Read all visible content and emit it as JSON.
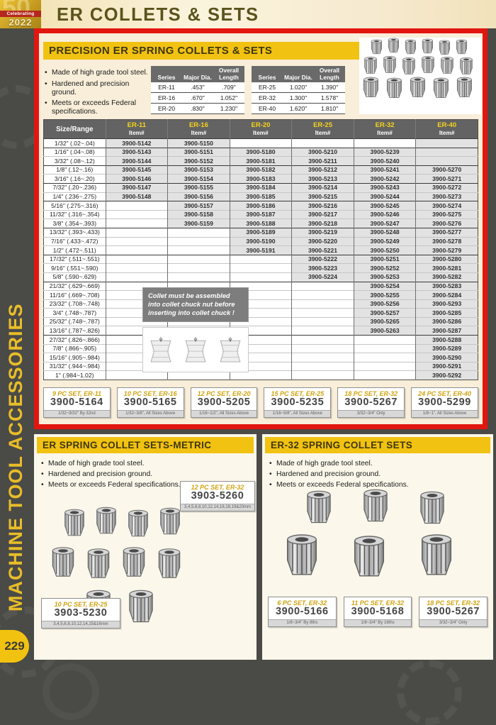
{
  "page": {
    "header_title": "ER COLLETS & SETS",
    "badge": {
      "line1": "Celebrating",
      "year": "2022",
      "anniversary": "50"
    },
    "sidebar_text": "MACHINE TOOL ACCESSORIES",
    "page_number": "229"
  },
  "main_section": {
    "title": "PRECISION ER SPRING COLLETS & SETS",
    "bullets": [
      "Made of high grade tool steel.",
      "Hardened and precision ground.",
      "Meets or exceeds Federal specifications."
    ],
    "spec_tables": [
      {
        "headers": [
          "Series",
          "Major Dia.",
          "Overall Length"
        ],
        "rows": [
          [
            "ER-11",
            ".453\"",
            ".709\""
          ],
          [
            "ER-16",
            ".670\"",
            "1.052\""
          ],
          [
            "ER-20",
            ".830\"",
            "1.230\""
          ]
        ]
      },
      {
        "headers": [
          "Series",
          "Major Dia.",
          "Overall Length"
        ],
        "rows": [
          [
            "ER-25",
            "1.020\"",
            "1.390\""
          ],
          [
            "ER-32",
            "1.300\"",
            "1.578\""
          ],
          [
            "ER-40",
            "1.620\"",
            "1.810\""
          ]
        ]
      }
    ],
    "table": {
      "size_header": "Size/Range",
      "col_headers": [
        {
          "series": "ER-11",
          "sub": "Item#"
        },
        {
          "series": "ER-16",
          "sub": "Item#"
        },
        {
          "series": "ER-20",
          "sub": "Item#"
        },
        {
          "series": "ER-25",
          "sub": "Item#"
        },
        {
          "series": "ER-32",
          "sub": "Item#"
        },
        {
          "series": "ER-40",
          "sub": "Item#"
        }
      ],
      "group_starts": [
        0,
        1,
        3,
        5,
        7,
        10,
        13,
        16,
        22
      ],
      "shaded_empty": [
        [
          0,
          5
        ],
        [
          1,
          5
        ],
        [
          2,
          5
        ]
      ],
      "rows": [
        [
          "1/32\" (.02~.04)",
          "3900-5142",
          "3900-5150",
          "",
          "",
          "",
          ""
        ],
        [
          "1/16\" (.04~.08)",
          "3900-5143",
          "3900-5151",
          "3900-5180",
          "3900-5210",
          "3900-5239",
          ""
        ],
        [
          "3/32\" (.08~.12)",
          "3900-5144",
          "3900-5152",
          "3900-5181",
          "3900-5211",
          "3900-5240",
          ""
        ],
        [
          "1/8\" (.12~.16)",
          "3900-5145",
          "3900-5153",
          "3900-5182",
          "3900-5212",
          "3900-5241",
          "3900-5270"
        ],
        [
          "3/16\" (.16~.20)",
          "3900-5146",
          "3900-5154",
          "3900-5183",
          "3900-5213",
          "3900-5242",
          "3900-5271"
        ],
        [
          "7/32\" (.20~.236)",
          "3900-5147",
          "3900-5155",
          "3900-5184",
          "3900-5214",
          "3900-5243",
          "3900-5272"
        ],
        [
          "1/4\" (.236~.275)",
          "3900-5148",
          "3900-5156",
          "3900-5185",
          "3900-5215",
          "3900-5244",
          "3900-5273"
        ],
        [
          "5/16\" (.275~.316)",
          "",
          "3900-5157",
          "3900-5186",
          "3900-5216",
          "3900-5245",
          "3900-5274"
        ],
        [
          "11/32\" (.316~.354)",
          "",
          "3900-5158",
          "3900-5187",
          "3900-5217",
          "3900-5246",
          "3900-5275"
        ],
        [
          "3/8\" (.354~.393)",
          "",
          "3900-5159",
          "3900-5188",
          "3900-5218",
          "3900-5247",
          "3900-5276"
        ],
        [
          "13/32\" (.393~.433)",
          "",
          "",
          "3900-5189",
          "3900-5219",
          "3900-5248",
          "3900-5277"
        ],
        [
          "7/16\" (.433~.472)",
          "",
          "",
          "3900-5190",
          "3900-5220",
          "3900-5249",
          "3900-5278"
        ],
        [
          "1/2\" (.472~.511)",
          "",
          "",
          "3900-5191",
          "3900-5221",
          "3900-5250",
          "3900-5279"
        ],
        [
          "17/32\" (.511~.551)",
          "",
          "",
          "",
          "3900-5222",
          "3900-5251",
          "3900-5280"
        ],
        [
          "9/16\" (.551~.590)",
          "",
          "",
          "",
          "3900-5223",
          "3900-5252",
          "3900-5281"
        ],
        [
          "5/8\" (.590~.629)",
          "",
          "",
          "",
          "3900-5224",
          "3900-5253",
          "3900-5282"
        ],
        [
          "21/32\" (.629~.669)",
          "",
          "",
          "",
          "",
          "3900-5254",
          "3900-5283"
        ],
        [
          "11/16\" (.669~.708)",
          "",
          "",
          "",
          "",
          "3900-5255",
          "3900-5284"
        ],
        [
          "23/32\" (.708~.748)",
          "",
          "",
          "",
          "",
          "3900-5256",
          "3900-5293"
        ],
        [
          "3/4\" (.748~.787)",
          "",
          "",
          "",
          "",
          "3900-5257",
          "3900-5285"
        ],
        [
          "25/32\" (.748~.787)",
          "",
          "",
          "",
          "",
          "3900-5265",
          "3900-5286"
        ],
        [
          "13/16\" (.787~.826)",
          "",
          "",
          "",
          "",
          "3900-5263",
          "3900-5287"
        ],
        [
          "27/32\" (.826~.866)",
          "",
          "",
          "",
          "",
          "",
          "3900-5288"
        ],
        [
          "7/8\" (.866~.905)",
          "",
          "",
          "",
          "",
          "",
          "3900-5289"
        ],
        [
          "15/16\" (.905~.984)",
          "",
          "",
          "",
          "",
          "",
          "3900-5290"
        ],
        [
          "31/32\" (.944~.984)",
          "",
          "",
          "",
          "",
          "",
          "3900-5291"
        ],
        [
          "1\" (.984~1.02)",
          "",
          "",
          "",
          "",
          "",
          "3900-5292"
        ]
      ]
    },
    "note": "Collet must be assembled into collet chuck nut before inserting into collet chuck !",
    "sets": [
      {
        "title": "9 PC SET, ER-11",
        "item": "3900-5164",
        "sub": "1/32~9/32\" By 32nd"
      },
      {
        "title": "10 PC SET, ER-16",
        "item": "3900-5165",
        "sub": "1/32~3/8\", All Sizes Above"
      },
      {
        "title": "12 PC SET, ER-20",
        "item": "3900-5205",
        "sub": "1/16~1/2\", All Sizes Above"
      },
      {
        "title": "15 PC SET, ER-25",
        "item": "3900-5235",
        "sub": "1/16~5/8\", All Sizes Above"
      },
      {
        "title": "18 PC SET, ER-32",
        "item": "3900-5267",
        "sub": "3/32~3/4\" Only"
      },
      {
        "title": "24 PC SET, ER-40",
        "item": "3900-5299",
        "sub": "1/8~1\", All Sizes Above"
      }
    ]
  },
  "metric_section": {
    "title": "ER SPRING COLLET SETS-METRIC",
    "bullets": [
      "Made of high grade tool steel.",
      "Hardened and precision ground.",
      "Meets or exceeds Federal specifications."
    ],
    "sets": [
      {
        "title": "12 PC SET, ER-32",
        "item": "3903-5260",
        "sub": "3,4,5,6,8,10,12,14,16,18,19&20mm"
      },
      {
        "title": "10 PC SET, ER-25",
        "item": "3903-5230",
        "sub": "3,4,5,6,8,10,12,14,15&16mm"
      }
    ]
  },
  "er32_section": {
    "title": "ER-32 SPRING COLLET SETS",
    "bullets": [
      "Made of high grade tool steel.",
      "Hardened and precision ground.",
      "Meets or exceeds Federal specifications."
    ],
    "sets": [
      {
        "title": "6 PC SET, ER-32",
        "item": "3900-5166",
        "sub": "1/8~3/4\" By 8ths"
      },
      {
        "title": "11 PC SET, ER-32",
        "item": "3900-5168",
        "sub": "1/8~3/4\" By 16ths"
      },
      {
        "title": "18 PC SET, ER-32",
        "item": "3900-5267",
        "sub": "3/32~3/4\" Only"
      }
    ]
  }
}
